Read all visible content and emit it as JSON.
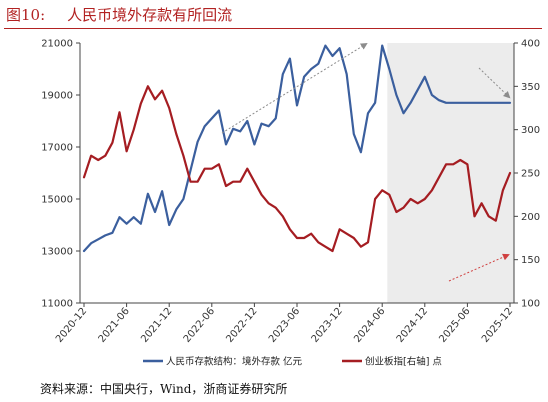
{
  "figure": {
    "number": "图10:",
    "title": "人民币境外存款有所回流",
    "source": "资料来源：中国央行，Wind，浙商证券研究所"
  },
  "colors": {
    "title": "#b22222",
    "deposits": "#3b5f9e",
    "chinext": "#a51d22",
    "highlight": "#ececec",
    "arrow": "#8c8c8c",
    "arrow_red": "#d04040"
  },
  "chart_data": {
    "type": "line",
    "x_tick_labels": [
      "2020-12",
      "2021-06",
      "2021-12",
      "2022-06",
      "2022-12",
      "2023-06",
      "2023-12",
      "2024-06",
      "2024-12",
      "2025-06",
      "2025-12"
    ],
    "x": [
      "2020-12",
      "2021-01",
      "2021-02",
      "2021-03",
      "2021-04",
      "2021-05",
      "2021-06",
      "2021-07",
      "2021-08",
      "2021-09",
      "2021-10",
      "2021-11",
      "2021-12",
      "2022-01",
      "2022-02",
      "2022-03",
      "2022-04",
      "2022-05",
      "2022-06",
      "2022-07",
      "2022-08",
      "2022-09",
      "2022-10",
      "2022-11",
      "2022-12",
      "2023-01",
      "2023-02",
      "2023-03",
      "2023-04",
      "2023-05",
      "2023-06",
      "2023-07",
      "2023-08",
      "2023-09",
      "2023-10",
      "2023-11",
      "2023-12",
      "2024-01",
      "2024-02",
      "2024-03",
      "2024-04",
      "2024-05",
      "2024-06",
      "2024-07",
      "2024-08",
      "2024-09",
      "2024-10",
      "2024-11",
      "2024-12",
      "2025-01",
      "2025-02",
      "2025-03",
      "2025-04",
      "2025-05",
      "2025-06",
      "2025-07",
      "2025-08",
      "2025-09",
      "2025-10",
      "2025-11",
      "2025-12"
    ],
    "y_left": {
      "min": 11000,
      "max": 21000,
      "step": 2000,
      "ticks": [
        11000,
        13000,
        15000,
        17000,
        19000,
        21000
      ]
    },
    "y_right": {
      "min": 100,
      "max": 400,
      "step": 50,
      "ticks": [
        100,
        150,
        200,
        250,
        300,
        350,
        400
      ]
    },
    "highlight_range": [
      "2024-07",
      "2025-12"
    ],
    "series": [
      {
        "name": "人民币存款结构：境外存款 亿元",
        "axis": "left",
        "values": [
          13000,
          13300,
          13450,
          13600,
          13700,
          14300,
          14050,
          14300,
          14050,
          15200,
          14500,
          15300,
          14000,
          14600,
          15000,
          16100,
          17200,
          17800,
          18100,
          18400,
          17100,
          17700,
          17600,
          18000,
          17100,
          17900,
          17800,
          18100,
          19800,
          20400,
          18600,
          19700,
          20000,
          20200,
          20900,
          20500,
          20800,
          19800,
          17500,
          16800,
          18300,
          18700,
          20900,
          20000,
          19000,
          18300,
          18700,
          19200,
          19700,
          19000,
          18800,
          18700,
          18700,
          18700,
          18700,
          18700,
          18700,
          18700,
          18700,
          18700,
          18700
        ],
        "color": "#3b5f9e"
      },
      {
        "name": "创业板指[右轴] 点",
        "axis": "right",
        "values": [
          245,
          270,
          265,
          270,
          285,
          320,
          275,
          300,
          330,
          350,
          335,
          345,
          325,
          295,
          270,
          240,
          240,
          255,
          255,
          260,
          235,
          240,
          240,
          255,
          240,
          225,
          215,
          210,
          200,
          185,
          175,
          175,
          180,
          170,
          165,
          160,
          185,
          180,
          175,
          165,
          170,
          220,
          230,
          225,
          205,
          210,
          220,
          215,
          220,
          230,
          245,
          260,
          260,
          265,
          260,
          200,
          215,
          200,
          195,
          230,
          250
        ],
        "color": "#a51d22"
      }
    ],
    "legend": "bottom",
    "grid": false
  }
}
